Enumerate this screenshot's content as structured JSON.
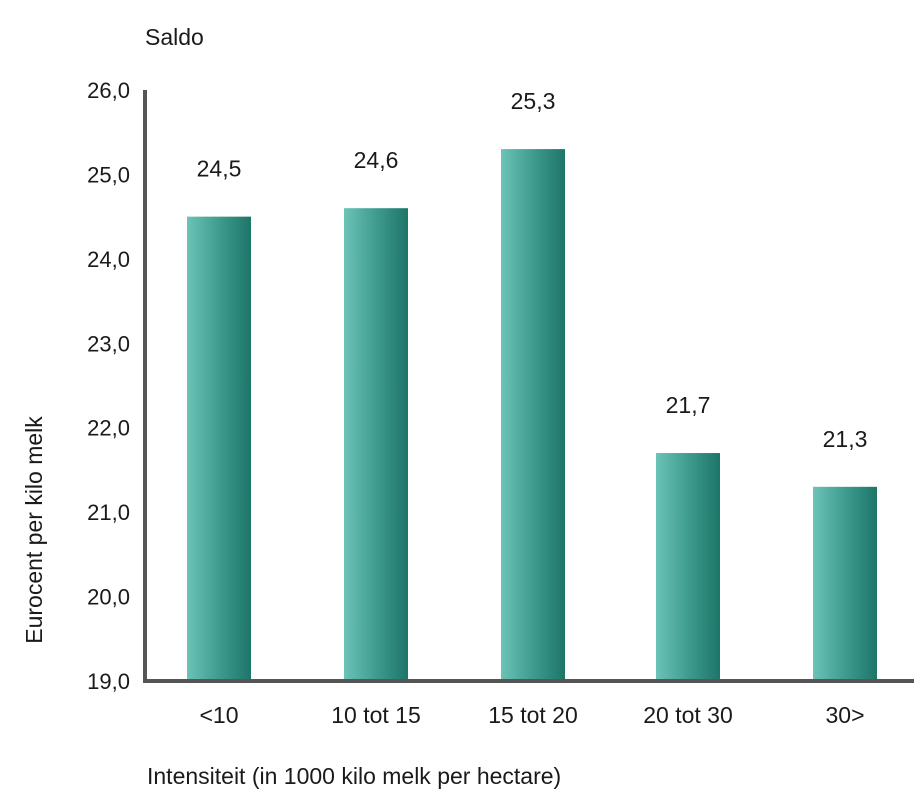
{
  "chart_data": {
    "type": "bar",
    "title": "Saldo",
    "xlabel": "Intensiteit (in 1000 kilo melk per hectare)",
    "ylabel": "Eurocent per kilo melk",
    "categories": [
      "<10",
      "10 tot 15",
      "15 tot 20",
      "20 tot 30",
      "30>"
    ],
    "values": [
      24.5,
      24.6,
      25.3,
      21.7,
      21.3
    ],
    "value_labels": [
      "24,5",
      "24,6",
      "25,3",
      "21,7",
      "21,3"
    ],
    "ylim": [
      19,
      26
    ],
    "yticks": [
      19,
      20,
      21,
      22,
      23,
      24,
      25,
      26
    ],
    "ytick_labels": [
      "19,0",
      "20,0",
      "21,0",
      "22,0",
      "23,0",
      "24,0",
      "25,0",
      "26,0"
    ],
    "grid": false,
    "legend": "none",
    "colors": {
      "bar_light": "#5fb9ad",
      "bar_dark": "#1f7a6c",
      "axis": "#555555"
    }
  }
}
